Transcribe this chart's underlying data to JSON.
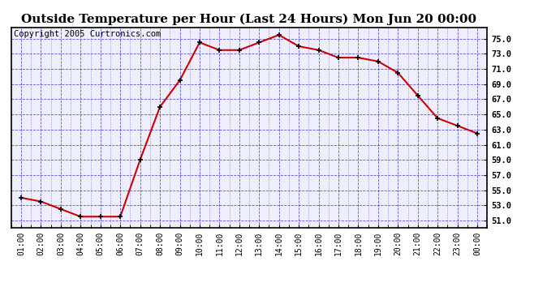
{
  "title": "Outside Temperature per Hour (Last 24 Hours) Mon Jun 20 00:00",
  "copyright": "Copyright 2005 Curtronics.com",
  "x_labels": [
    "01:00",
    "02:00",
    "03:00",
    "04:00",
    "05:00",
    "06:00",
    "07:00",
    "08:00",
    "09:00",
    "10:00",
    "11:00",
    "12:00",
    "13:00",
    "14:00",
    "15:00",
    "16:00",
    "17:00",
    "18:00",
    "19:00",
    "20:00",
    "21:00",
    "22:00",
    "23:00",
    "00:00"
  ],
  "y_values": [
    54.0,
    53.5,
    52.5,
    51.5,
    51.5,
    51.5,
    59.0,
    66.0,
    69.5,
    74.5,
    73.5,
    73.5,
    74.5,
    75.5,
    74.0,
    73.5,
    72.5,
    72.5,
    72.0,
    70.5,
    67.5,
    64.5,
    63.5,
    62.5
  ],
  "ylim": [
    50.0,
    76.5
  ],
  "yticks": [
    51.0,
    53.0,
    55.0,
    57.0,
    59.0,
    61.0,
    63.0,
    65.0,
    67.0,
    69.0,
    71.0,
    73.0,
    75.0
  ],
  "line_color": "#cc0000",
  "marker_color": "#000000",
  "bg_color": "#ffffff",
  "plot_bg_color": "#eeeeff",
  "grid_color": "#3333cc",
  "title_fontsize": 11,
  "copyright_fontsize": 7.5
}
